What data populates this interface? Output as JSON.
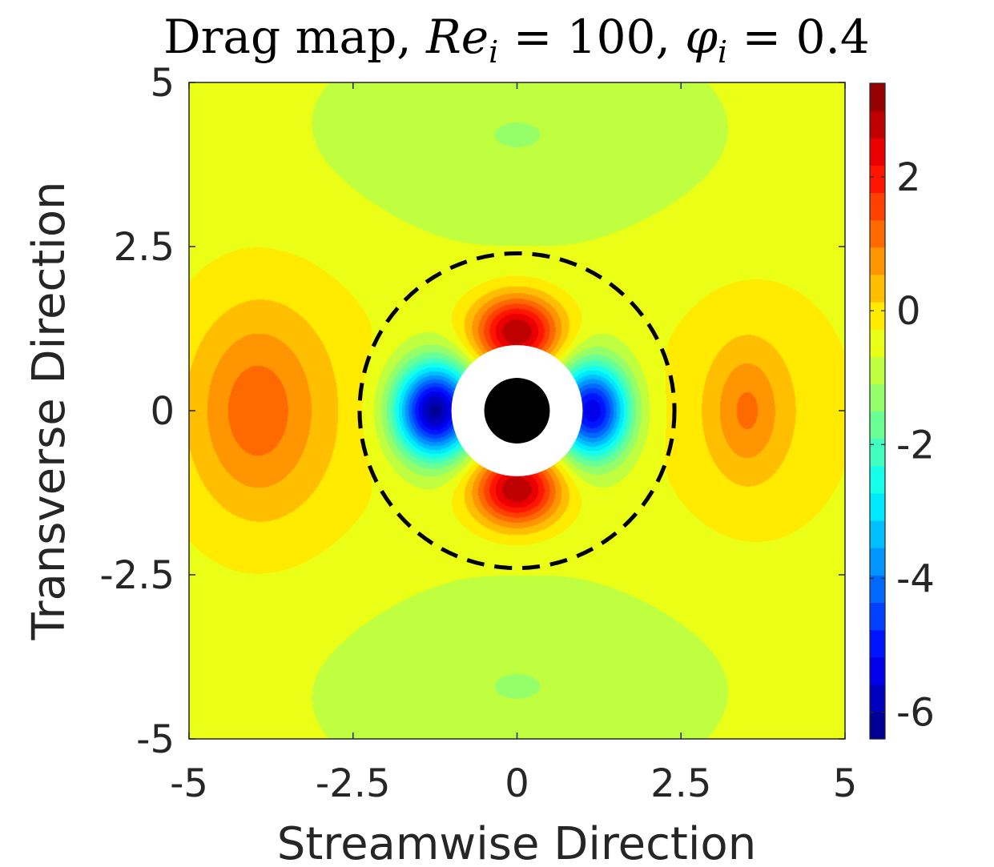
{
  "chart_data": {
    "type": "heatmap",
    "title": "Drag map, Re_i = 100, φ_i = 0.4",
    "title_parts": {
      "prefix": "Drag map, ",
      "re_symbol": "Re",
      "re_subscript": "i",
      "re_equals": " = 100, ",
      "phi_symbol": "φ",
      "phi_subscript": "i",
      "phi_equals": " = 0.4"
    },
    "xlabel": "Streamwise Direction",
    "ylabel": "Transverse Direction",
    "xlim": [
      -5,
      5
    ],
    "ylim": [
      -5,
      5
    ],
    "x_ticks": [
      {
        "value": -5,
        "label": "-5"
      },
      {
        "value": -2.5,
        "label": "-2.5"
      },
      {
        "value": 0,
        "label": "0"
      },
      {
        "value": 2.5,
        "label": "2.5"
      },
      {
        "value": 5,
        "label": "5"
      }
    ],
    "y_ticks": [
      {
        "value": -5,
        "label": "-5"
      },
      {
        "value": -2.5,
        "label": "-2.5"
      },
      {
        "value": 0,
        "label": "0"
      },
      {
        "value": 2.5,
        "label": "2.5"
      },
      {
        "value": 5,
        "label": "5"
      }
    ],
    "colorbar": {
      "range": [
        -6.4,
        3.4
      ],
      "ticks": [
        {
          "value": 2,
          "label": "2"
        },
        {
          "value": 0,
          "label": "0"
        },
        {
          "value": -2,
          "label": "-2"
        },
        {
          "value": -4,
          "label": "-4"
        },
        {
          "value": -6,
          "label": "-6"
        }
      ],
      "colormap": "jet"
    },
    "field": {
      "background_value": -0.5,
      "features": [
        {
          "name": "upper-green-band",
          "cx": 0,
          "cy": 4.2,
          "rx": 3.0,
          "ry": 1.6,
          "value": -1.1
        },
        {
          "name": "lower-green-band",
          "cx": 0,
          "cy": -4.2,
          "rx": 3.0,
          "ry": 1.6,
          "value": -1.1
        },
        {
          "name": "left-yellow-region",
          "cx": -3.7,
          "cy": 0,
          "rx": 1.7,
          "ry": 2.3,
          "value": 0.2
        },
        {
          "name": "left-orange-lobe",
          "cx": -4.0,
          "cy": 0,
          "rx": 0.9,
          "ry": 1.4,
          "value": 0.55
        },
        {
          "name": "right-yellow-region",
          "cx": 3.6,
          "cy": 0,
          "rx": 1.5,
          "ry": 2.0,
          "value": 0.15
        },
        {
          "name": "right-orange-lobe",
          "cx": 3.5,
          "cy": 0,
          "rx": 0.5,
          "ry": 0.9,
          "value": 0.4
        },
        {
          "name": "top-red-lobe",
          "cx": 0,
          "cy": 1.2,
          "rx": 0.65,
          "ry": 0.55,
          "value": 3.0
        },
        {
          "name": "bottom-red-lobe",
          "cx": 0,
          "cy": -1.2,
          "rx": 0.65,
          "ry": 0.55,
          "value": 3.0
        },
        {
          "name": "left-blue-lobe",
          "cx": -1.25,
          "cy": 0,
          "rx": 0.6,
          "ry": 0.7,
          "value": -6.2
        },
        {
          "name": "right-blue-lobe",
          "cx": 1.15,
          "cy": 0,
          "rx": 0.55,
          "ry": 0.7,
          "value": -5.5
        }
      ]
    },
    "annotations": {
      "dashed_circle": {
        "center": [
          0,
          0
        ],
        "radius": 2.4,
        "style": "dashed",
        "color": "#000000"
      },
      "exclusion_ring": {
        "center": [
          0,
          0
        ],
        "radius": 1.0,
        "color": "#ffffff"
      },
      "particle": {
        "center": [
          0,
          0
        ],
        "radius": 0.5,
        "color": "#000000"
      }
    }
  }
}
